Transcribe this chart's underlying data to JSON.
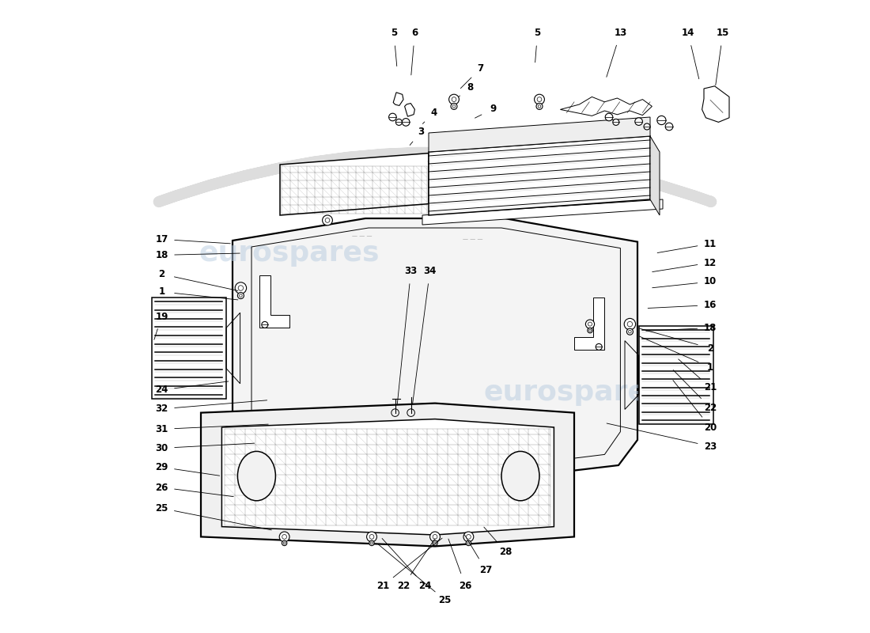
{
  "background_color": "#ffffff",
  "line_color": "#000000",
  "fig_width": 11.0,
  "fig_height": 8.0
}
